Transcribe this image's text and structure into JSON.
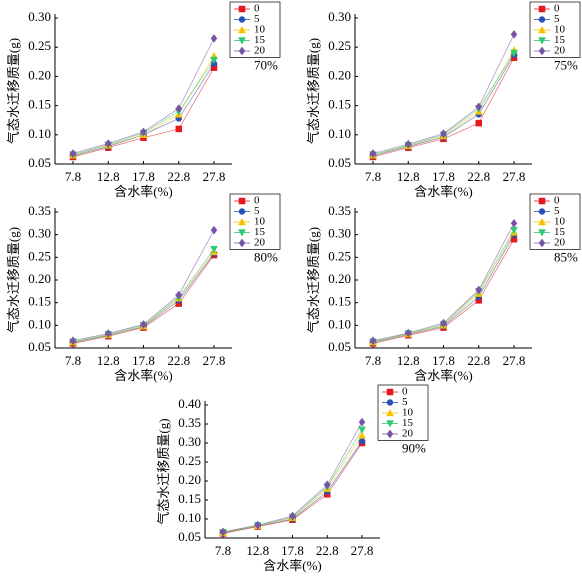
{
  "chart_data": [
    {
      "type": "line",
      "annotation": "70%",
      "x_label": "含水率(%)",
      "y_label": "气态水迁移质量(g)",
      "categories": [
        "7.8",
        "12.8",
        "17.8",
        "22.8",
        "27.8"
      ],
      "ylim": [
        0.05,
        0.3
      ],
      "yticks": [
        0.05,
        {
          "value": 0.1,
          "label": "0.10"
        },
        0.15,
        {
          "value": 0.2,
          "label": "0.20"
        },
        0.25,
        {
          "value": 0.3,
          "label": "0.30"
        }
      ],
      "series": [
        {
          "name": "0",
          "color": "#e41a1c",
          "marker": "square",
          "values": [
            0.062,
            0.078,
            0.095,
            0.11,
            0.215
          ]
        },
        {
          "name": "5",
          "color": "#2b50b8",
          "marker": "circle",
          "values": [
            0.064,
            0.08,
            0.1,
            0.128,
            0.222
          ]
        },
        {
          "name": "10",
          "color": "#f2c500",
          "marker": "triangle-up",
          "values": [
            0.065,
            0.082,
            0.1,
            0.135,
            0.235
          ]
        },
        {
          "name": "15",
          "color": "#2ecc71",
          "marker": "triangle-down",
          "values": [
            0.066,
            0.083,
            0.103,
            0.14,
            0.228
          ]
        },
        {
          "name": "20",
          "color": "#7b52a8",
          "marker": "diamond",
          "values": [
            0.068,
            0.085,
            0.105,
            0.145,
            0.265
          ]
        }
      ]
    },
    {
      "type": "line",
      "annotation": "75%",
      "x_label": "含水率(%)",
      "y_label": "气态水迁移质量(g)",
      "categories": [
        "7.8",
        "12.8",
        "17.8",
        "22.8",
        "27.8"
      ],
      "ylim": [
        0.05,
        0.3
      ],
      "yticks": [
        0.05,
        {
          "value": 0.1,
          "label": "0.10"
        },
        0.15,
        {
          "value": 0.2,
          "label": "0.20"
        },
        0.25,
        {
          "value": 0.3,
          "label": "0.30"
        }
      ],
      "series": [
        {
          "name": "0",
          "color": "#e41a1c",
          "marker": "square",
          "values": [
            0.062,
            0.078,
            0.093,
            0.12,
            0.232
          ]
        },
        {
          "name": "5",
          "color": "#2b50b8",
          "marker": "circle",
          "values": [
            0.064,
            0.08,
            0.096,
            0.135,
            0.237
          ]
        },
        {
          "name": "10",
          "color": "#f2c500",
          "marker": "triangle-up",
          "values": [
            0.065,
            0.081,
            0.098,
            0.14,
            0.245
          ]
        },
        {
          "name": "15",
          "color": "#2ecc71",
          "marker": "triangle-down",
          "values": [
            0.066,
            0.082,
            0.1,
            0.145,
            0.24
          ]
        },
        {
          "name": "20",
          "color": "#7b52a8",
          "marker": "diamond",
          "values": [
            0.068,
            0.084,
            0.102,
            0.148,
            0.272
          ]
        }
      ]
    },
    {
      "type": "line",
      "annotation": "80%",
      "x_label": "含水率(%)",
      "y_label": "气态水迁移质量(g)",
      "categories": [
        "7.8",
        "12.8",
        "17.8",
        "22.8",
        "27.8"
      ],
      "ylim": [
        0.05,
        0.35
      ],
      "yticks": [
        0.05,
        {
          "value": 0.1,
          "label": "0.10"
        },
        0.15,
        {
          "value": 0.2,
          "label": "0.20"
        },
        0.25,
        {
          "value": 0.3,
          "label": "0.30"
        },
        0.35
      ],
      "series": [
        {
          "name": "0",
          "color": "#e41a1c",
          "marker": "square",
          "values": [
            0.06,
            0.076,
            0.095,
            0.148,
            0.255
          ]
        },
        {
          "name": "5",
          "color": "#2b50b8",
          "marker": "circle",
          "values": [
            0.062,
            0.078,
            0.097,
            0.155,
            0.258
          ]
        },
        {
          "name": "10",
          "color": "#f2c500",
          "marker": "triangle-up",
          "values": [
            0.063,
            0.079,
            0.098,
            0.16,
            0.262
          ]
        },
        {
          "name": "15",
          "color": "#2ecc71",
          "marker": "triangle-down",
          "values": [
            0.064,
            0.08,
            0.1,
            0.162,
            0.268
          ]
        },
        {
          "name": "20",
          "color": "#7b52a8",
          "marker": "diamond",
          "values": [
            0.066,
            0.082,
            0.102,
            0.167,
            0.31
          ]
        }
      ]
    },
    {
      "type": "line",
      "annotation": "85%",
      "x_label": "含水率(%)",
      "y_label": "气态水迁移质量(g)",
      "categories": [
        "7.8",
        "12.8",
        "17.8",
        "22.8",
        "27.8"
      ],
      "ylim": [
        0.05,
        0.35
      ],
      "yticks": [
        0.05,
        {
          "value": 0.1,
          "label": "0.10"
        },
        0.15,
        {
          "value": 0.2,
          "label": "0.20"
        },
        0.25,
        {
          "value": 0.3,
          "label": "0.30"
        },
        0.35
      ],
      "series": [
        {
          "name": "0",
          "color": "#e41a1c",
          "marker": "square",
          "values": [
            0.06,
            0.078,
            0.095,
            0.155,
            0.29
          ]
        },
        {
          "name": "5",
          "color": "#2b50b8",
          "marker": "circle",
          "values": [
            0.062,
            0.08,
            0.098,
            0.163,
            0.3
          ]
        },
        {
          "name": "10",
          "color": "#f2c500",
          "marker": "triangle-up",
          "values": [
            0.063,
            0.081,
            0.1,
            0.17,
            0.305
          ]
        },
        {
          "name": "15",
          "color": "#2ecc71",
          "marker": "triangle-down",
          "values": [
            0.064,
            0.082,
            0.102,
            0.175,
            0.31
          ]
        },
        {
          "name": "20",
          "color": "#7b52a8",
          "marker": "diamond",
          "values": [
            0.066,
            0.083,
            0.105,
            0.178,
            0.325
          ]
        }
      ]
    },
    {
      "type": "line",
      "annotation": "90%",
      "x_label": "含水率(%)",
      "y_label": "气态水迁移质量(g)",
      "categories": [
        "7.8",
        "12.8",
        "17.8",
        "22.8",
        "27.8"
      ],
      "ylim": [
        0.05,
        0.4
      ],
      "yticks": [
        0.05,
        {
          "value": 0.1,
          "label": "0.10"
        },
        0.15,
        {
          "value": 0.2,
          "label": "0.20"
        },
        0.25,
        {
          "value": 0.3,
          "label": "0.30"
        },
        0.35,
        {
          "value": 0.4,
          "label": "0.40"
        }
      ],
      "series": [
        {
          "name": "0",
          "color": "#e41a1c",
          "marker": "square",
          "values": [
            0.062,
            0.08,
            0.098,
            0.165,
            0.3
          ]
        },
        {
          "name": "5",
          "color": "#2b50b8",
          "marker": "circle",
          "values": [
            0.063,
            0.081,
            0.1,
            0.172,
            0.305
          ]
        },
        {
          "name": "10",
          "color": "#f2c500",
          "marker": "triangle-up",
          "values": [
            0.064,
            0.082,
            0.103,
            0.18,
            0.32
          ]
        },
        {
          "name": "15",
          "color": "#2ecc71",
          "marker": "triangle-down",
          "values": [
            0.065,
            0.083,
            0.105,
            0.185,
            0.335
          ]
        },
        {
          "name": "20",
          "color": "#7b52a8",
          "marker": "diamond",
          "values": [
            0.066,
            0.084,
            0.108,
            0.19,
            0.355
          ]
        }
      ]
    }
  ]
}
